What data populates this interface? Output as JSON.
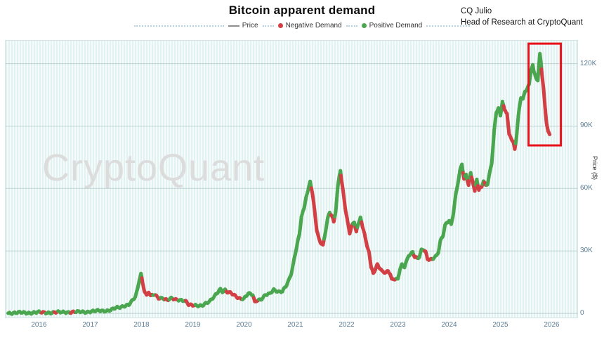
{
  "title": "Bitcoin apparent demand",
  "byline": {
    "name": "CQ Julio",
    "role": "Head of Research at CryptoQuant"
  },
  "watermark": "CryptoQuant",
  "legend": [
    {
      "label": "Price",
      "type": "line",
      "color": "#8f8f8f"
    },
    {
      "label": "Negative Demand",
      "type": "dot",
      "color": "#d23f44"
    },
    {
      "label": "Positive Demand",
      "type": "dot",
      "color": "#4aa64f"
    }
  ],
  "chart_data": {
    "type": "scatter",
    "title": "Bitcoin apparent demand",
    "xlabel": "",
    "ylabel": "Price ($)",
    "grid": "horizontal",
    "legend_position": "top",
    "xlim": [
      2015.35,
      2026.5
    ],
    "ylim": [
      -2000,
      131000
    ],
    "x_ticks": [
      2016,
      2017,
      2018,
      2019,
      2020,
      2021,
      2022,
      2023,
      2024,
      2025,
      2026
    ],
    "y_ticks": [
      {
        "v": 0,
        "l": "0"
      },
      {
        "v": 30000,
        "l": "30K"
      },
      {
        "v": 60000,
        "l": "60K"
      },
      {
        "v": 90000,
        "l": "90K"
      },
      {
        "v": 120000,
        "l": "120K"
      }
    ],
    "series_colors": {
      "positive": "#4aa64f",
      "negative": "#d23f44",
      "price_line": "#8f8f8f"
    },
    "highlight_box": {
      "x0": 2025.55,
      "x1": 2026.18,
      "y0": 80700,
      "y1": 129600,
      "color": "#e8121a"
    },
    "points": [
      [
        2015.4,
        240,
        "p"
      ],
      [
        2015.5,
        265,
        "p"
      ],
      [
        2015.6,
        255,
        "p"
      ],
      [
        2015.7,
        300,
        "p"
      ],
      [
        2015.8,
        330,
        "p"
      ],
      [
        2015.9,
        380,
        "p"
      ],
      [
        2016.0,
        430,
        "p"
      ],
      [
        2016.08,
        400,
        "n"
      ],
      [
        2016.16,
        425,
        "p"
      ],
      [
        2016.25,
        440,
        "p"
      ],
      [
        2016.33,
        455,
        "n"
      ],
      [
        2016.42,
        470,
        "p"
      ],
      [
        2016.5,
        660,
        "p"
      ],
      [
        2016.58,
        650,
        "p"
      ],
      [
        2016.67,
        590,
        "n"
      ],
      [
        2016.75,
        615,
        "p"
      ],
      [
        2016.83,
        700,
        "p"
      ],
      [
        2016.92,
        770,
        "p"
      ],
      [
        2017.0,
        960,
        "p"
      ],
      [
        2017.08,
        1020,
        "p"
      ],
      [
        2017.17,
        1180,
        "p"
      ],
      [
        2017.25,
        1230,
        "p"
      ],
      [
        2017.33,
        1400,
        "p"
      ],
      [
        2017.42,
        1800,
        "p"
      ],
      [
        2017.5,
        2500,
        "p"
      ],
      [
        2017.58,
        2800,
        "p"
      ],
      [
        2017.67,
        3800,
        "p"
      ],
      [
        2017.75,
        4300,
        "p"
      ],
      [
        2017.83,
        6200,
        "p"
      ],
      [
        2017.88,
        7800,
        "p"
      ],
      [
        2017.92,
        11000,
        "p"
      ],
      [
        2017.96,
        16500,
        "p"
      ],
      [
        2017.99,
        19000,
        "p"
      ],
      [
        2018.02,
        15000,
        "n"
      ],
      [
        2018.06,
        11000,
        "n"
      ],
      [
        2018.1,
        8700,
        "n"
      ],
      [
        2018.14,
        10500,
        "n"
      ],
      [
        2018.18,
        8300,
        "n"
      ],
      [
        2018.25,
        8900,
        "p"
      ],
      [
        2018.33,
        7300,
        "n"
      ],
      [
        2018.42,
        7500,
        "p"
      ],
      [
        2018.5,
        6500,
        "n"
      ],
      [
        2018.58,
        7100,
        "p"
      ],
      [
        2018.67,
        6400,
        "n"
      ],
      [
        2018.75,
        6500,
        "p"
      ],
      [
        2018.83,
        6400,
        "p"
      ],
      [
        2018.88,
        5600,
        "n"
      ],
      [
        2018.92,
        4200,
        "n"
      ],
      [
        2018.96,
        3800,
        "n"
      ],
      [
        2019.0,
        3700,
        "n"
      ],
      [
        2019.08,
        3650,
        "p"
      ],
      [
        2019.17,
        3950,
        "p"
      ],
      [
        2019.25,
        4900,
        "p"
      ],
      [
        2019.33,
        5600,
        "p"
      ],
      [
        2019.42,
        7900,
        "p"
      ],
      [
        2019.5,
        10800,
        "p"
      ],
      [
        2019.54,
        11800,
        "p"
      ],
      [
        2019.58,
        10700,
        "p"
      ],
      [
        2019.63,
        11300,
        "p"
      ],
      [
        2019.67,
        10200,
        "n"
      ],
      [
        2019.75,
        9500,
        "n"
      ],
      [
        2019.83,
        8300,
        "n"
      ],
      [
        2019.92,
        7300,
        "n"
      ],
      [
        2020.0,
        7200,
        "p"
      ],
      [
        2020.08,
        9400,
        "p"
      ],
      [
        2020.17,
        8800,
        "p"
      ],
      [
        2020.21,
        5300,
        "n"
      ],
      [
        2020.25,
        6400,
        "n"
      ],
      [
        2020.33,
        6900,
        "p"
      ],
      [
        2020.42,
        8800,
        "p"
      ],
      [
        2020.5,
        9200,
        "p"
      ],
      [
        2020.58,
        11300,
        "p"
      ],
      [
        2020.67,
        10600,
        "p"
      ],
      [
        2020.75,
        10700,
        "p"
      ],
      [
        2020.83,
        13500,
        "p"
      ],
      [
        2020.88,
        16000,
        "p"
      ],
      [
        2020.92,
        19000,
        "p"
      ],
      [
        2020.96,
        23500,
        "p"
      ],
      [
        2021.0,
        29000,
        "p"
      ],
      [
        2021.04,
        34000,
        "p"
      ],
      [
        2021.08,
        38000,
        "p"
      ],
      [
        2021.12,
        47000,
        "p"
      ],
      [
        2021.17,
        50000,
        "p"
      ],
      [
        2021.21,
        56000,
        "p"
      ],
      [
        2021.25,
        58500,
        "p"
      ],
      [
        2021.29,
        63500,
        "p"
      ],
      [
        2021.33,
        58000,
        "n"
      ],
      [
        2021.38,
        49000,
        "n"
      ],
      [
        2021.42,
        40000,
        "n"
      ],
      [
        2021.46,
        36000,
        "n"
      ],
      [
        2021.5,
        34000,
        "n"
      ],
      [
        2021.54,
        32500,
        "n"
      ],
      [
        2021.58,
        38000,
        "p"
      ],
      [
        2021.63,
        45000,
        "p"
      ],
      [
        2021.67,
        48500,
        "p"
      ],
      [
        2021.71,
        47000,
        "n"
      ],
      [
        2021.75,
        44000,
        "n"
      ],
      [
        2021.79,
        50000,
        "p"
      ],
      [
        2021.83,
        61000,
        "p"
      ],
      [
        2021.86,
        66500,
        "p"
      ],
      [
        2021.88,
        69000,
        "p"
      ],
      [
        2021.9,
        64000,
        "n"
      ],
      [
        2021.94,
        57000,
        "n"
      ],
      [
        2021.98,
        49500,
        "n"
      ],
      [
        2022.02,
        43500,
        "n"
      ],
      [
        2022.06,
        38500,
        "n"
      ],
      [
        2022.1,
        42000,
        "n"
      ],
      [
        2022.15,
        44200,
        "p"
      ],
      [
        2022.19,
        39500,
        "n"
      ],
      [
        2022.23,
        43000,
        "p"
      ],
      [
        2022.27,
        46500,
        "p"
      ],
      [
        2022.31,
        41000,
        "n"
      ],
      [
        2022.35,
        38500,
        "n"
      ],
      [
        2022.4,
        31500,
        "n"
      ],
      [
        2022.44,
        29500,
        "n"
      ],
      [
        2022.48,
        22000,
        "n"
      ],
      [
        2022.52,
        19500,
        "n"
      ],
      [
        2022.56,
        21500,
        "n"
      ],
      [
        2022.6,
        23500,
        "n"
      ],
      [
        2022.65,
        21800,
        "n"
      ],
      [
        2022.69,
        20000,
        "n"
      ],
      [
        2022.73,
        19600,
        "n"
      ],
      [
        2022.77,
        19300,
        "n"
      ],
      [
        2022.81,
        20300,
        "n"
      ],
      [
        2022.85,
        19100,
        "n"
      ],
      [
        2022.88,
        16400,
        "n"
      ],
      [
        2022.92,
        16900,
        "n"
      ],
      [
        2022.96,
        16600,
        "n"
      ],
      [
        2023.0,
        16700,
        "p"
      ],
      [
        2023.04,
        21100,
        "p"
      ],
      [
        2023.08,
        23100,
        "p"
      ],
      [
        2023.13,
        22100,
        "p"
      ],
      [
        2023.17,
        24800,
        "p"
      ],
      [
        2023.21,
        28000,
        "p"
      ],
      [
        2023.25,
        28400,
        "p"
      ],
      [
        2023.29,
        29900,
        "p"
      ],
      [
        2023.33,
        27300,
        "n"
      ],
      [
        2023.38,
        26600,
        "n"
      ],
      [
        2023.42,
        27100,
        "p"
      ],
      [
        2023.46,
        30200,
        "p"
      ],
      [
        2023.5,
        30500,
        "p"
      ],
      [
        2023.54,
        29300,
        "n"
      ],
      [
        2023.58,
        26100,
        "n"
      ],
      [
        2023.63,
        26000,
        "n"
      ],
      [
        2023.67,
        26300,
        "n"
      ],
      [
        2023.71,
        27200,
        "p"
      ],
      [
        2023.75,
        27600,
        "p"
      ],
      [
        2023.79,
        29500,
        "p"
      ],
      [
        2023.83,
        34500,
        "p"
      ],
      [
        2023.88,
        37200,
        "p"
      ],
      [
        2023.92,
        42000,
        "p"
      ],
      [
        2023.96,
        43700,
        "p"
      ],
      [
        2024.0,
        44800,
        "p"
      ],
      [
        2024.04,
        42800,
        "p"
      ],
      [
        2024.08,
        48000,
        "p"
      ],
      [
        2024.13,
        57000,
        "p"
      ],
      [
        2024.17,
        62500,
        "p"
      ],
      [
        2024.21,
        68000,
        "p"
      ],
      [
        2024.25,
        71500,
        "p"
      ],
      [
        2024.29,
        64500,
        "n"
      ],
      [
        2024.33,
        66500,
        "p"
      ],
      [
        2024.38,
        62000,
        "n"
      ],
      [
        2024.42,
        67500,
        "p"
      ],
      [
        2024.46,
        64000,
        "n"
      ],
      [
        2024.5,
        58500,
        "n"
      ],
      [
        2024.54,
        64500,
        "p"
      ],
      [
        2024.58,
        59000,
        "n"
      ],
      [
        2024.63,
        60500,
        "n"
      ],
      [
        2024.67,
        63500,
        "p"
      ],
      [
        2024.71,
        61500,
        "n"
      ],
      [
        2024.75,
        62500,
        "p"
      ],
      [
        2024.79,
        67500,
        "p"
      ],
      [
        2024.83,
        72500,
        "p"
      ],
      [
        2024.88,
        88000,
        "p"
      ],
      [
        2024.92,
        96500,
        "p"
      ],
      [
        2024.96,
        98500,
        "p"
      ],
      [
        2025.0,
        94500,
        "p"
      ],
      [
        2025.04,
        102000,
        "p"
      ],
      [
        2025.08,
        97500,
        "n"
      ],
      [
        2025.13,
        96500,
        "n"
      ],
      [
        2025.17,
        86000,
        "n"
      ],
      [
        2025.21,
        84500,
        "n"
      ],
      [
        2025.25,
        82500,
        "n"
      ],
      [
        2025.28,
        78500,
        "n"
      ],
      [
        2025.31,
        84000,
        "p"
      ],
      [
        2025.35,
        94500,
        "p"
      ],
      [
        2025.4,
        103500,
        "p"
      ],
      [
        2025.44,
        103000,
        "p"
      ],
      [
        2025.48,
        106500,
        "p"
      ],
      [
        2025.52,
        108500,
        "p"
      ],
      [
        2025.56,
        110000,
        "p"
      ],
      [
        2025.6,
        117500,
        "p"
      ],
      [
        2025.63,
        119500,
        "p"
      ],
      [
        2025.65,
        116000,
        "p"
      ],
      [
        2025.69,
        113500,
        "p"
      ],
      [
        2025.73,
        111500,
        "p"
      ],
      [
        2025.77,
        124500,
        "p"
      ],
      [
        2025.79,
        121000,
        "p"
      ],
      [
        2025.81,
        115000,
        "n"
      ],
      [
        2025.84,
        108000,
        "n"
      ],
      [
        2025.87,
        99500,
        "n"
      ],
      [
        2025.9,
        92000,
        "n"
      ],
      [
        2025.93,
        87500,
        "n"
      ],
      [
        2025.96,
        86000,
        "n"
      ]
    ]
  }
}
